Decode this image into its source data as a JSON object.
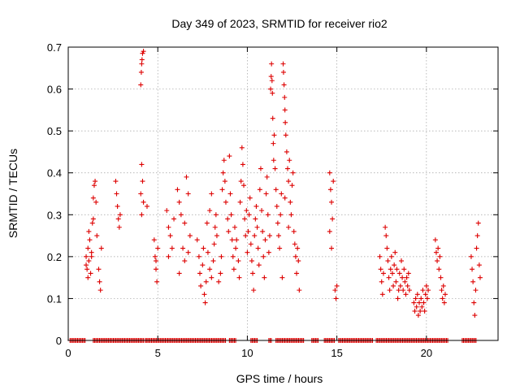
{
  "chart_data": {
    "type": "scatter",
    "title": "Day 349 of 2023, SRMTID for receiver rio2",
    "xlabel": "GPS time / hours",
    "ylabel": "SRMTID / TECUs",
    "xlim": [
      0,
      24
    ],
    "ylim": [
      0,
      0.7
    ],
    "xticks": [
      0,
      5,
      10,
      15,
      20
    ],
    "xtick_labels": [
      "0",
      "5",
      "10",
      "15",
      "20"
    ],
    "yticks": [
      0,
      0.1,
      0.2,
      0.3,
      0.4,
      0.5,
      0.6,
      0.7
    ],
    "ytick_labels": [
      "0",
      "0.1",
      "0.2",
      "0.3",
      "0.4",
      "0.5",
      "0.6",
      "0.7"
    ],
    "grid": true,
    "marker": "+",
    "color": "#dd0000",
    "series": [
      {
        "name": "SRMTID",
        "points": [
          [
            1.0,
            0.2
          ],
          [
            1.05,
            0.17
          ],
          [
            1.1,
            0.15
          ],
          [
            1.1,
            0.22
          ],
          [
            1.15,
            0.19
          ],
          [
            1.2,
            0.24
          ],
          [
            1.25,
            0.16
          ],
          [
            1.3,
            0.21
          ],
          [
            1.35,
            0.28
          ],
          [
            1.4,
            0.29
          ],
          [
            1.4,
            0.34
          ],
          [
            1.45,
            0.37
          ],
          [
            1.5,
            0.38
          ],
          [
            1.55,
            0.33
          ],
          [
            1.6,
            0.25
          ],
          [
            1.7,
            0.17
          ],
          [
            1.75,
            0.14
          ],
          [
            1.8,
            0.12
          ],
          [
            1.85,
            0.22
          ],
          [
            1.0,
            0.18
          ],
          [
            1.15,
            0.26
          ],
          [
            1.3,
            0.2
          ],
          [
            2.65,
            0.38
          ],
          [
            2.7,
            0.35
          ],
          [
            2.75,
            0.32
          ],
          [
            2.8,
            0.29
          ],
          [
            2.85,
            0.27
          ],
          [
            2.9,
            0.3
          ],
          [
            4.05,
            0.61
          ],
          [
            4.08,
            0.64
          ],
          [
            4.1,
            0.66
          ],
          [
            4.12,
            0.67
          ],
          [
            4.15,
            0.685
          ],
          [
            4.2,
            0.69
          ],
          [
            4.1,
            0.42
          ],
          [
            4.05,
            0.35
          ],
          [
            4.1,
            0.3
          ],
          [
            4.15,
            0.38
          ],
          [
            4.2,
            0.33
          ],
          [
            4.4,
            0.32
          ],
          [
            4.8,
            0.24
          ],
          [
            4.85,
            0.2
          ],
          [
            4.9,
            0.17
          ],
          [
            4.95,
            0.14
          ],
          [
            5.0,
            0.22
          ],
          [
            4.9,
            0.19
          ],
          [
            5.5,
            0.31
          ],
          [
            5.6,
            0.27
          ],
          [
            5.7,
            0.25
          ],
          [
            5.8,
            0.22
          ],
          [
            5.9,
            0.29
          ],
          [
            5.6,
            0.2
          ],
          [
            6.1,
            0.36
          ],
          [
            6.2,
            0.33
          ],
          [
            6.3,
            0.3
          ],
          [
            6.4,
            0.22
          ],
          [
            6.5,
            0.19
          ],
          [
            6.6,
            0.39
          ],
          [
            6.7,
            0.35
          ],
          [
            6.8,
            0.25
          ],
          [
            6.5,
            0.28
          ],
          [
            6.2,
            0.16
          ],
          [
            6.7,
            0.21
          ],
          [
            7.2,
            0.24
          ],
          [
            7.3,
            0.2
          ],
          [
            7.35,
            0.16
          ],
          [
            7.4,
            0.13
          ],
          [
            7.5,
            0.18
          ],
          [
            7.55,
            0.22
          ],
          [
            7.6,
            0.11
          ],
          [
            7.65,
            0.09
          ],
          [
            7.7,
            0.14
          ],
          [
            7.8,
            0.21
          ],
          [
            7.9,
            0.17
          ],
          [
            8.0,
            0.15
          ],
          [
            8.1,
            0.19
          ],
          [
            8.15,
            0.23
          ],
          [
            8.2,
            0.27
          ],
          [
            8.25,
            0.3
          ],
          [
            8.3,
            0.25
          ],
          [
            8.4,
            0.14
          ],
          [
            8.5,
            0.16
          ],
          [
            8.55,
            0.2
          ],
          [
            8.6,
            0.36
          ],
          [
            8.65,
            0.4
          ],
          [
            8.7,
            0.43
          ],
          [
            8.75,
            0.38
          ],
          [
            8.8,
            0.33
          ],
          [
            8.9,
            0.29
          ],
          [
            8.95,
            0.26
          ],
          [
            9.0,
            0.44
          ],
          [
            9.05,
            0.35
          ],
          [
            9.1,
            0.3
          ],
          [
            9.15,
            0.24
          ],
          [
            9.2,
            0.2
          ],
          [
            9.25,
            0.17
          ],
          [
            9.3,
            0.27
          ],
          [
            9.35,
            0.22
          ],
          [
            9.4,
            0.24
          ],
          [
            9.5,
            0.19
          ],
          [
            9.55,
            0.15
          ],
          [
            9.6,
            0.33
          ],
          [
            9.65,
            0.38
          ],
          [
            9.7,
            0.46
          ],
          [
            9.75,
            0.42
          ],
          [
            9.8,
            0.37
          ],
          [
            9.85,
            0.29
          ],
          [
            9.9,
            0.25
          ],
          [
            9.95,
            0.31
          ],
          [
            8.0,
            0.35
          ],
          [
            7.9,
            0.31
          ],
          [
            7.75,
            0.28
          ],
          [
            10.0,
            0.21
          ],
          [
            10.05,
            0.26
          ],
          [
            10.1,
            0.3
          ],
          [
            10.15,
            0.34
          ],
          [
            10.2,
            0.23
          ],
          [
            10.25,
            0.19
          ],
          [
            10.3,
            0.16
          ],
          [
            10.35,
            0.12
          ],
          [
            10.4,
            0.25
          ],
          [
            10.45,
            0.29
          ],
          [
            10.5,
            0.32
          ],
          [
            10.55,
            0.27
          ],
          [
            10.6,
            0.22
          ],
          [
            10.65,
            0.18
          ],
          [
            10.7,
            0.36
          ],
          [
            10.75,
            0.41
          ],
          [
            10.8,
            0.31
          ],
          [
            10.85,
            0.26
          ],
          [
            10.9,
            0.2
          ],
          [
            10.95,
            0.15
          ],
          [
            11.0,
            0.24
          ],
          [
            11.05,
            0.35
          ],
          [
            11.1,
            0.39
          ],
          [
            11.15,
            0.3
          ],
          [
            11.2,
            0.21
          ],
          [
            11.25,
            0.25
          ],
          [
            11.3,
            0.6
          ],
          [
            11.33,
            0.63
          ],
          [
            11.35,
            0.66
          ],
          [
            11.38,
            0.62
          ],
          [
            11.4,
            0.59
          ],
          [
            11.42,
            0.53
          ],
          [
            11.45,
            0.47
          ],
          [
            11.47,
            0.43
          ],
          [
            11.5,
            0.49
          ],
          [
            11.55,
            0.41
          ],
          [
            11.6,
            0.36
          ],
          [
            11.65,
            0.32
          ],
          [
            11.7,
            0.28
          ],
          [
            11.75,
            0.25
          ],
          [
            11.8,
            0.22
          ],
          [
            11.85,
            0.3
          ],
          [
            11.9,
            0.35
          ],
          [
            11.95,
            0.15
          ],
          [
            12.0,
            0.66
          ],
          [
            12.02,
            0.64
          ],
          [
            12.05,
            0.61
          ],
          [
            12.08,
            0.58
          ],
          [
            12.1,
            0.55
          ],
          [
            12.12,
            0.52
          ],
          [
            12.15,
            0.49
          ],
          [
            12.2,
            0.45
          ],
          [
            12.25,
            0.41
          ],
          [
            12.3,
            0.38
          ],
          [
            12.35,
            0.43
          ],
          [
            12.4,
            0.33
          ],
          [
            12.45,
            0.3
          ],
          [
            12.5,
            0.37
          ],
          [
            12.55,
            0.4
          ],
          [
            12.6,
            0.26
          ],
          [
            12.65,
            0.23
          ],
          [
            12.7,
            0.2
          ],
          [
            12.75,
            0.16
          ],
          [
            12.8,
            0.22
          ],
          [
            12.85,
            0.19
          ],
          [
            12.9,
            0.12
          ],
          [
            12.3,
            0.27
          ],
          [
            12.1,
            0.34
          ],
          [
            14.6,
            0.4
          ],
          [
            14.65,
            0.36
          ],
          [
            14.7,
            0.33
          ],
          [
            14.75,
            0.29
          ],
          [
            14.6,
            0.26
          ],
          [
            14.7,
            0.22
          ],
          [
            14.8,
            0.38
          ],
          [
            14.9,
            0.12
          ],
          [
            14.95,
            0.1
          ],
          [
            15.0,
            0.13
          ],
          [
            17.4,
            0.2
          ],
          [
            17.45,
            0.17
          ],
          [
            17.5,
            0.14
          ],
          [
            17.55,
            0.11
          ],
          [
            17.6,
            0.16
          ],
          [
            17.7,
            0.27
          ],
          [
            17.75,
            0.25
          ],
          [
            17.8,
            0.22
          ],
          [
            17.85,
            0.19
          ],
          [
            17.9,
            0.15
          ],
          [
            17.95,
            0.12
          ],
          [
            18.0,
            0.17
          ],
          [
            18.05,
            0.2
          ],
          [
            18.1,
            0.16
          ],
          [
            18.15,
            0.13
          ],
          [
            18.2,
            0.18
          ],
          [
            18.25,
            0.21
          ],
          [
            18.3,
            0.14
          ],
          [
            18.35,
            0.17
          ],
          [
            18.4,
            0.1
          ],
          [
            18.45,
            0.12
          ],
          [
            18.5,
            0.16
          ],
          [
            18.55,
            0.13
          ],
          [
            18.6,
            0.19
          ],
          [
            18.65,
            0.15
          ],
          [
            18.7,
            0.12
          ],
          [
            18.75,
            0.17
          ],
          [
            18.8,
            0.14
          ],
          [
            18.85,
            0.11
          ],
          [
            18.9,
            0.15
          ],
          [
            18.95,
            0.13
          ],
          [
            19.0,
            0.16
          ],
          [
            19.05,
            0.12
          ],
          [
            19.3,
            0.09
          ],
          [
            19.35,
            0.07
          ],
          [
            19.4,
            0.1
          ],
          [
            19.45,
            0.08
          ],
          [
            19.5,
            0.11
          ],
          [
            19.55,
            0.06
          ],
          [
            19.6,
            0.09
          ],
          [
            19.65,
            0.07
          ],
          [
            19.7,
            0.1
          ],
          [
            19.75,
            0.08
          ],
          [
            19.8,
            0.12
          ],
          [
            19.85,
            0.09
          ],
          [
            19.9,
            0.07
          ],
          [
            19.95,
            0.11
          ],
          [
            20.0,
            0.13
          ],
          [
            20.05,
            0.1
          ],
          [
            20.1,
            0.12
          ],
          [
            20.5,
            0.24
          ],
          [
            20.55,
            0.21
          ],
          [
            20.6,
            0.19
          ],
          [
            20.65,
            0.22
          ],
          [
            20.7,
            0.17
          ],
          [
            20.75,
            0.2
          ],
          [
            20.8,
            0.15
          ],
          [
            20.85,
            0.12
          ],
          [
            20.9,
            0.1
          ],
          [
            20.95,
            0.13
          ],
          [
            21.0,
            0.09
          ],
          [
            21.05,
            0.11
          ],
          [
            22.5,
            0.2
          ],
          [
            22.55,
            0.17
          ],
          [
            22.6,
            0.14
          ],
          [
            22.65,
            0.09
          ],
          [
            22.7,
            0.06
          ],
          [
            22.75,
            0.12
          ],
          [
            22.8,
            0.22
          ],
          [
            22.85,
            0.25
          ],
          [
            22.9,
            0.28
          ],
          [
            22.95,
            0.18
          ],
          [
            23.0,
            0.15
          ]
        ],
        "zero_ranges": [
          [
            0.1,
            1.0
          ],
          [
            1.4,
            4.2
          ],
          [
            4.3,
            8.8
          ],
          [
            9.0,
            9.4
          ],
          [
            10.2,
            10.6
          ],
          [
            11.2,
            11.4
          ],
          [
            11.6,
            13.2
          ],
          [
            13.6,
            14.0
          ],
          [
            14.3,
            14.9
          ],
          [
            15.1,
            17.0
          ],
          [
            17.2,
            21.2
          ],
          [
            22.0,
            22.8
          ]
        ]
      }
    ]
  }
}
